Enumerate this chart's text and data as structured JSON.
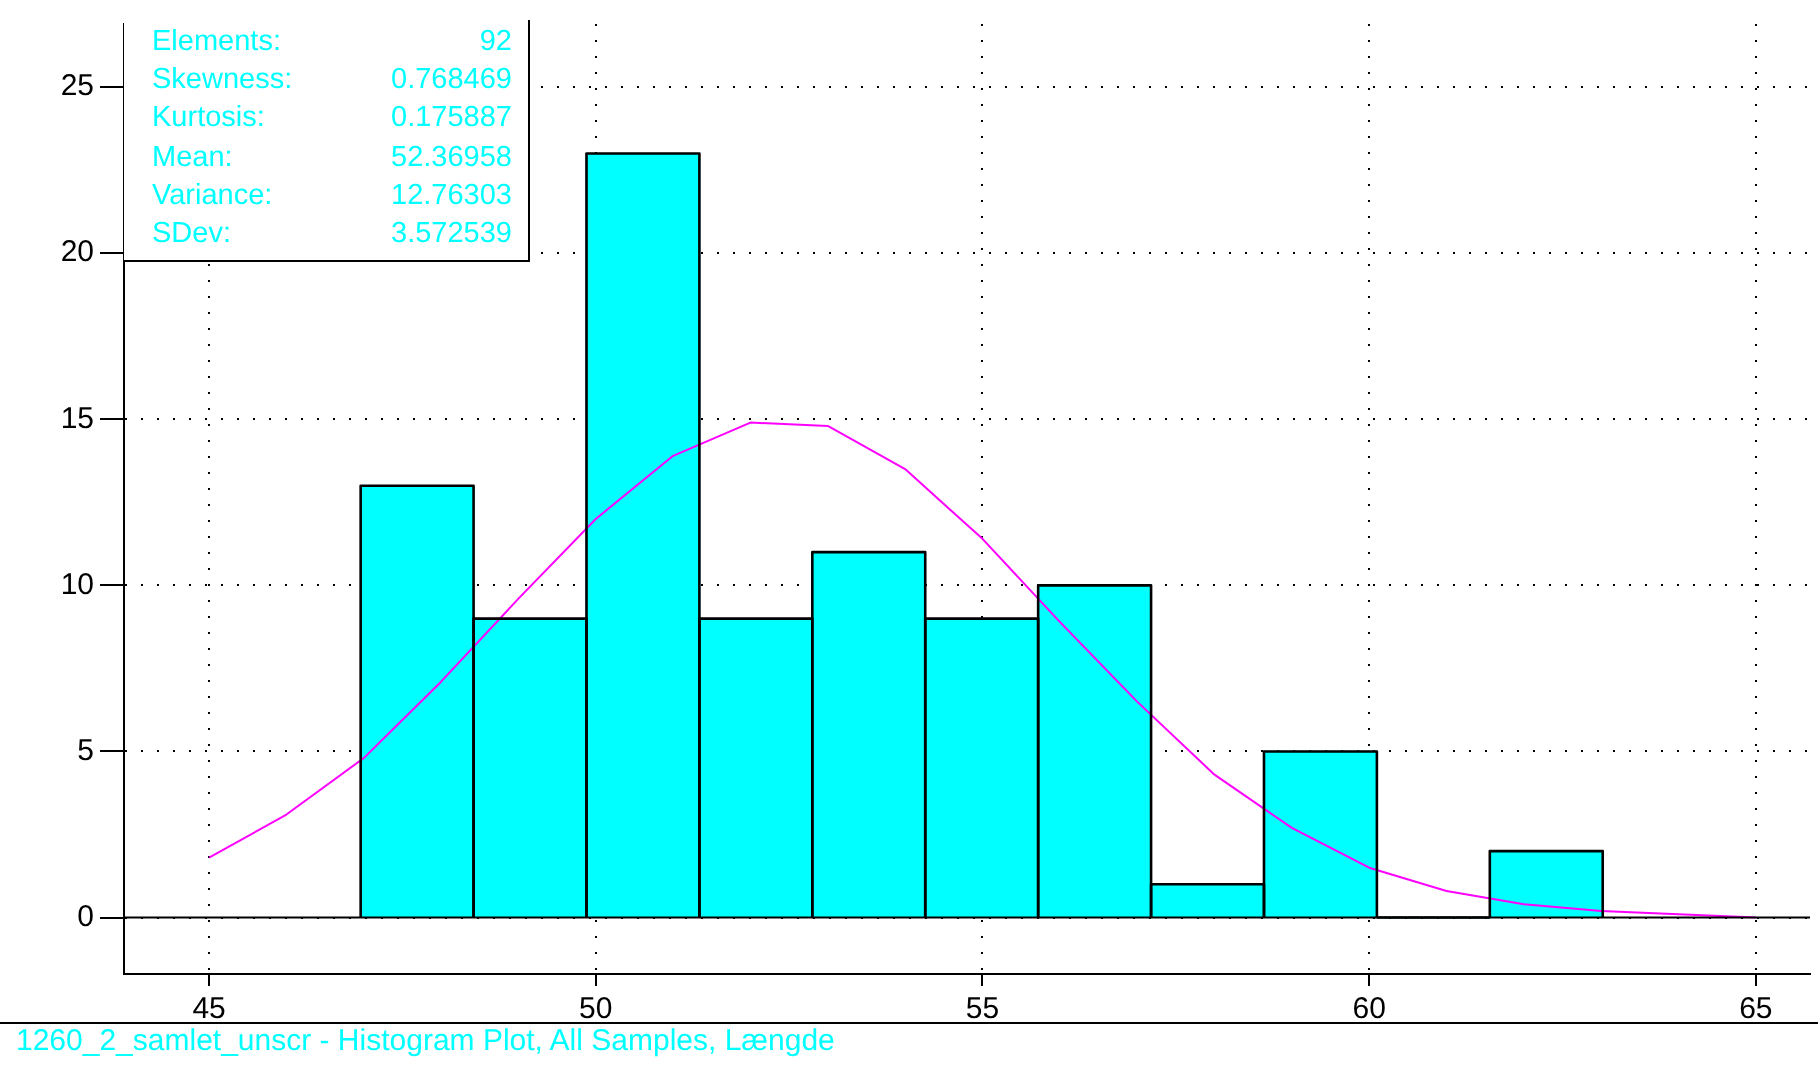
{
  "chart_data": {
    "type": "histogram",
    "bins": [
      46.96,
      48.42,
      49.88,
      51.34,
      52.8,
      54.26,
      55.72,
      57.18,
      58.64,
      60.1,
      61.56,
      63.02
    ],
    "values": [
      13,
      9,
      23,
      9,
      11,
      9,
      10,
      1,
      5,
      0,
      2
    ],
    "color": "#00ffff",
    "series": [
      {
        "type": "line",
        "color": "#ff00ff",
        "x": [
          45,
          46,
          47,
          48,
          49,
          50,
          51,
          52,
          53,
          54,
          55,
          56,
          57,
          58,
          59,
          60,
          61,
          62,
          63,
          64,
          65
        ],
        "values": [
          1.8,
          3.1,
          4.8,
          7.1,
          9.6,
          12.0,
          13.9,
          14.9,
          14.8,
          13.5,
          11.4,
          8.9,
          6.5,
          4.3,
          2.7,
          1.5,
          0.8,
          0.4,
          0.2,
          0.1,
          0.0
        ]
      }
    ],
    "xlim": [
      43.9,
      65.7
    ],
    "xticks": [
      45,
      50,
      55,
      60,
      65
    ],
    "ylim": [
      -1.7,
      26.9
    ],
    "yticks": [
      0,
      5,
      10,
      15,
      20,
      25
    ],
    "grid": true,
    "legend": false,
    "ref_lines": [
      {
        "axis": "y",
        "value": 0,
        "color": "#000000"
      }
    ],
    "annotations": [
      "Elements: 92",
      "Skewness: 0.768469",
      "Kurtosis: 0.175887",
      "Mean: 52.36958",
      "Variance: 12.76303",
      "SDev: 3.572539",
      "1260_2_samlet_unscr - Histogram Plot, All Samples, Længde"
    ]
  }
}
